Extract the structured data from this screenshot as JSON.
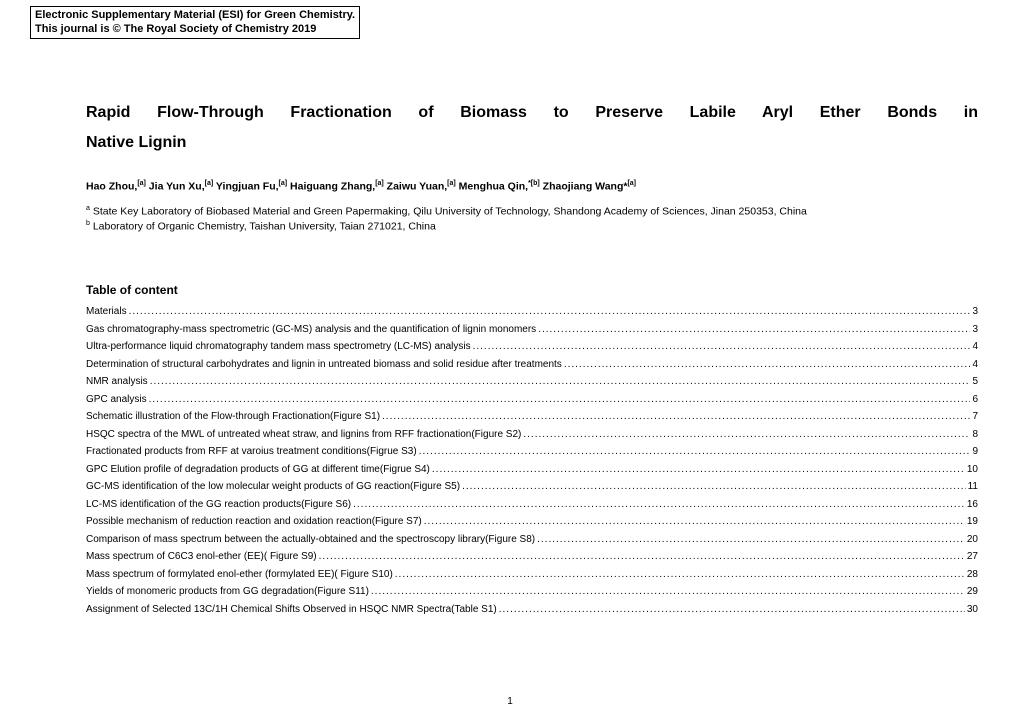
{
  "journal": {
    "line1": "Electronic Supplementary Material (ESI) for Green Chemistry.",
    "line2": "This journal is © The Royal Society of Chemistry 2019"
  },
  "title_line1": "Rapid Flow-Through Fractionation of Biomass to Preserve Labile Aryl Ether Bonds in",
  "title_line2": "Native Lignin",
  "authors": "Hao Zhou,[a] Jia Yun Xu,[a] Yingjuan Fu,[a] Haiguang Zhang,[a] Zaiwu Yuan,[a] Menghua Qin,*[b] Zhaojiang Wang*[a]",
  "affil_a": "a State Key Laboratory of Biobased Material and Green Papermaking, Qilu University of Technology, Shandong Academy of Sciences, Jinan 250353, China",
  "affil_b": "b Laboratory of Organic Chemistry, Taishan University, Taian 271021, China",
  "toc_heading": "Table of content",
  "toc": [
    {
      "label": "Materials",
      "page": "3"
    },
    {
      "label": "Gas chromatography-mass spectrometric (GC-MS) analysis and the quantification of lignin monomers",
      "page": "3"
    },
    {
      "label": "Ultra-performance liquid chromatography tandem mass spectrometry (LC-MS) analysis",
      "page": "4"
    },
    {
      "label": "Determination of structural carbohydrates and lignin in untreated biomass and solid residue after treatments",
      "page": "4"
    },
    {
      "label": "NMR analysis",
      "page": "5"
    },
    {
      "label": "GPC analysis",
      "page": "6"
    },
    {
      "label": "Schematic illustration of the Flow-through Fractionation(Figure S1)",
      "page": "7"
    },
    {
      "label": "HSQC spectra of the MWL of untreated wheat straw, and lignins from RFF fractionation(Figure S2)",
      "page": "8"
    },
    {
      "label": "Fractionated products from RFF at varoius treatment conditions(Figrue S3)",
      "page": "9"
    },
    {
      "label": "GPC Elution profile of degradation products of GG at different time(Figrue S4)",
      "page": "10"
    },
    {
      "label": "GC-MS identification of the low molecular weight products of GG reaction(Figure S5)",
      "page": "11"
    },
    {
      "label": "LC-MS identification of the GG reaction products(Figure S6)",
      "page": "16"
    },
    {
      "label": "Possible mechanism of reduction reaction and oxidation reaction(Figure S7)",
      "page": "19"
    },
    {
      "label": "Comparison of mass spectrum between the actually-obtained and the spectroscopy library(Figure S8)",
      "page": "20"
    },
    {
      "label": "Mass spectrum of C6C3 enol-ether (EE)( Figure S9)",
      "page": "27"
    },
    {
      "label": "Mass spectrum of formylated enol-ether (formylated EE)( Figure S10)",
      "page": "28"
    },
    {
      "label": "Yields of monomeric products from GG degradation(Figure S11)",
      "page": "29"
    },
    {
      "label": "Assignment of Selected 13C/1H Chemical Shifts Observed in HSQC NMR Spectra(Table S1)",
      "page": "30"
    }
  ],
  "page_number": "1"
}
